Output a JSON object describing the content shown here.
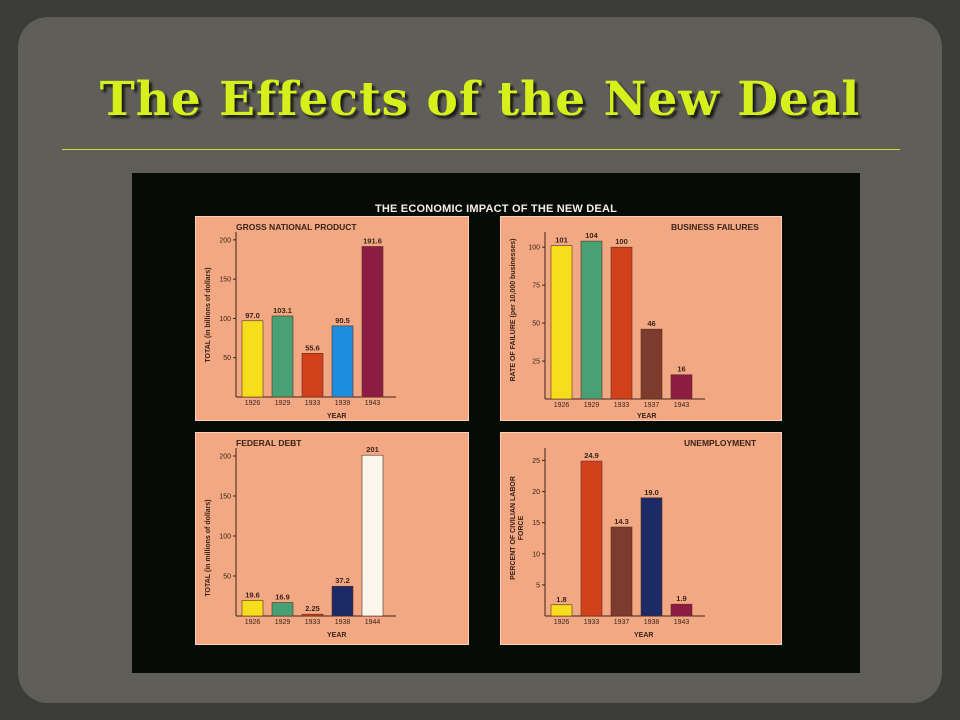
{
  "slide": {
    "title": "The Effects of the New Deal"
  },
  "figure_title": "THE ECONOMIC IMPACT OF THE NEW DEAL",
  "chart_data": [
    {
      "type": "bar",
      "title": "GROSS NATIONAL PRODUCT",
      "ylabel": "TOTAL (in billions of dollars)",
      "xlabel": "YEAR",
      "categories": [
        "1926",
        "1929",
        "1933",
        "1939",
        "1943"
      ],
      "values": [
        97.0,
        103.1,
        55.6,
        90.5,
        191.6
      ],
      "value_labels": [
        "97.0",
        "103.1",
        "55.6",
        "90.5",
        "191.6"
      ],
      "colors": [
        "#f7de1c",
        "#47a175",
        "#d3401c",
        "#1d8de0",
        "#8c1c42"
      ],
      "yticks": [
        50,
        100,
        150,
        200
      ],
      "ylim": [
        0,
        210
      ]
    },
    {
      "type": "bar",
      "title": "BUSINESS FAILURES",
      "ylabel": "RATE OF FAILURE (per 10,000 businesses)",
      "xlabel": "YEAR",
      "categories": [
        "1926",
        "1929",
        "1933",
        "1937",
        "1943"
      ],
      "values": [
        101,
        104,
        100,
        46,
        16
      ],
      "value_labels": [
        "101",
        "104",
        "100",
        "46",
        "16"
      ],
      "colors": [
        "#f7de1c",
        "#47a175",
        "#d3401c",
        "#7d3b2d",
        "#8c1c42"
      ],
      "yticks": [
        25,
        50,
        75,
        100
      ],
      "ylim": [
        0,
        110
      ]
    },
    {
      "type": "bar",
      "title": "FEDERAL DEBT",
      "ylabel": "TOTAL (in millions of dollars)",
      "xlabel": "YEAR",
      "categories": [
        "1926",
        "1929",
        "1933",
        "1938",
        "1944"
      ],
      "values": [
        19.6,
        16.9,
        2.25,
        37.2,
        201
      ],
      "value_labels": [
        "19.6",
        "16.9",
        "2.25",
        "37.2",
        "201"
      ],
      "colors": [
        "#f7de1c",
        "#47a175",
        "#d3401c",
        "#1c2a66",
        "#fbf6ec"
      ],
      "yticks": [
        50,
        100,
        150,
        200
      ],
      "ylim": [
        0,
        210
      ]
    },
    {
      "type": "bar",
      "title": "UNEMPLOYMENT",
      "ylabel": "PERCENT OF CIVILIAN LABOR FORCE",
      "xlabel": "YEAR",
      "categories": [
        "1926",
        "1933",
        "1937",
        "1938",
        "1943"
      ],
      "values": [
        1.8,
        24.9,
        14.3,
        19.0,
        1.9
      ],
      "value_labels": [
        "1.8",
        "24.9",
        "14.3",
        "19.0",
        "1.9"
      ],
      "colors": [
        "#f7de1c",
        "#d3401c",
        "#7d3b2d",
        "#1c2a66",
        "#8c1c42"
      ],
      "yticks": [
        5,
        10,
        15,
        20,
        25
      ],
      "ylim": [
        0,
        27
      ]
    }
  ]
}
